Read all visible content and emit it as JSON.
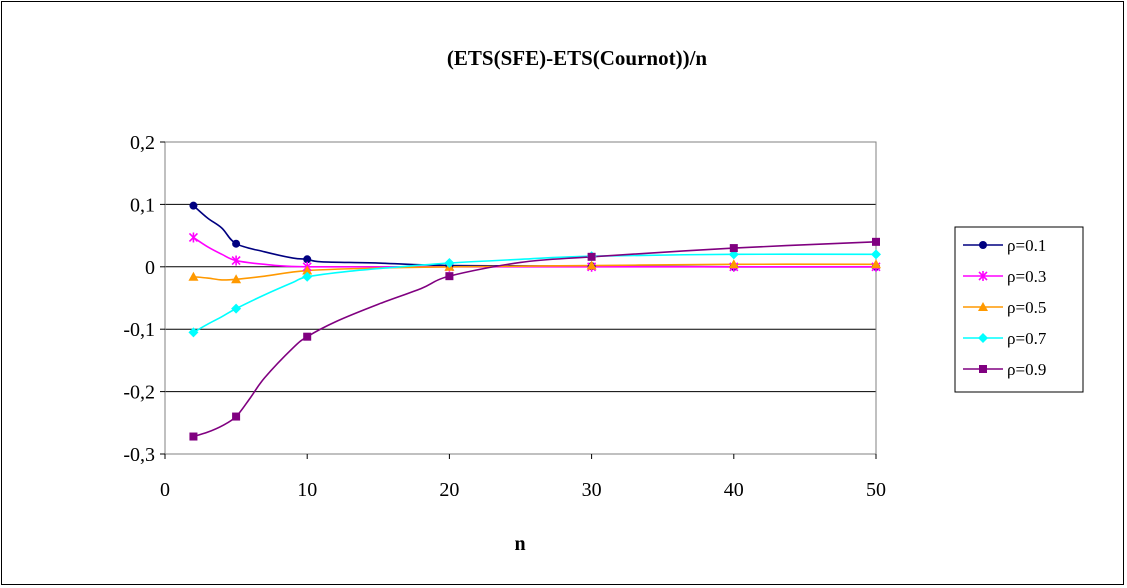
{
  "chart_data": {
    "type": "line",
    "title": "(ETS(SFE)-ETS(Cournot))/n",
    "xlabel": "n",
    "ylabel": "",
    "xlim": [
      0,
      50
    ],
    "ylim": [
      -0.3,
      0.2
    ],
    "xticks": [
      0,
      10,
      20,
      30,
      40,
      50
    ],
    "xtick_labels": [
      "0",
      "10",
      "20",
      "30",
      "40",
      "50"
    ],
    "yticks": [
      -0.3,
      -0.2,
      -0.1,
      0,
      0.1,
      0.2
    ],
    "ytick_labels": [
      "-0,3",
      "-0,2",
      "-0,1",
      "0",
      "0,1",
      "0,2"
    ],
    "grid": "horizontal",
    "legend_position": "right",
    "series": [
      {
        "name": "ρ=0.1",
        "color": "#000080",
        "marker": "circle",
        "curve": [
          [
            2,
            0.098
          ],
          [
            3,
            0.078
          ],
          [
            4,
            0.062
          ],
          [
            5,
            0.037
          ],
          [
            7,
            0.024
          ],
          [
            9,
            0.014
          ],
          [
            10,
            0.012
          ],
          [
            11,
            0.008
          ],
          [
            15,
            0.006
          ],
          [
            20,
            0.002
          ],
          [
            30,
            0.001
          ],
          [
            40,
            0.0
          ],
          [
            50,
            0.0
          ]
        ],
        "markers": [
          [
            2,
            0.098
          ],
          [
            5,
            0.037
          ],
          [
            10,
            0.012
          ],
          [
            20,
            0.002
          ],
          [
            30,
            0.001
          ],
          [
            40,
            0.0
          ],
          [
            50,
            0.0
          ]
        ]
      },
      {
        "name": "ρ=0.3",
        "color": "#ff00ff",
        "marker": "asterisk",
        "curve": [
          [
            2,
            0.047
          ],
          [
            3,
            0.032
          ],
          [
            4,
            0.02
          ],
          [
            5,
            0.01
          ],
          [
            7,
            0.004
          ],
          [
            10,
            0.0
          ],
          [
            20,
            0.0
          ],
          [
            30,
            0.0
          ],
          [
            40,
            0.0
          ],
          [
            50,
            0.0
          ]
        ],
        "markers": [
          [
            2,
            0.047
          ],
          [
            5,
            0.01
          ],
          [
            10,
            0.0
          ],
          [
            20,
            0.0
          ],
          [
            30,
            0.0
          ],
          [
            40,
            0.0
          ],
          [
            50,
            0.0
          ]
        ]
      },
      {
        "name": "ρ=0.5",
        "color": "#ff9900",
        "marker": "triangle",
        "curve": [
          [
            2,
            -0.016
          ],
          [
            3,
            -0.018
          ],
          [
            4,
            -0.021
          ],
          [
            5,
            -0.02
          ],
          [
            7,
            -0.015
          ],
          [
            10,
            -0.006
          ],
          [
            15,
            -0.002
          ],
          [
            20,
            0.0
          ],
          [
            30,
            0.002
          ],
          [
            40,
            0.004
          ],
          [
            50,
            0.004
          ]
        ],
        "markers": [
          [
            2,
            -0.016
          ],
          [
            5,
            -0.02
          ],
          [
            10,
            -0.006
          ],
          [
            20,
            0.0
          ],
          [
            30,
            0.002
          ],
          [
            40,
            0.004
          ],
          [
            50,
            0.004
          ]
        ]
      },
      {
        "name": "ρ=0.7",
        "color": "#00ffff",
        "marker": "diamond",
        "curve": [
          [
            2,
            -0.105
          ],
          [
            3,
            -0.092
          ],
          [
            4,
            -0.08
          ],
          [
            5,
            -0.067
          ],
          [
            7,
            -0.045
          ],
          [
            9,
            -0.025
          ],
          [
            10,
            -0.016
          ],
          [
            13,
            -0.007
          ],
          [
            16,
            -0.001
          ],
          [
            20,
            0.006
          ],
          [
            25,
            0.012
          ],
          [
            30,
            0.017
          ],
          [
            40,
            0.02
          ],
          [
            50,
            0.02
          ]
        ],
        "markers": [
          [
            2,
            -0.105
          ],
          [
            5,
            -0.067
          ],
          [
            10,
            -0.016
          ],
          [
            20,
            0.006
          ],
          [
            30,
            0.017
          ],
          [
            40,
            0.02
          ],
          [
            50,
            0.02
          ]
        ]
      },
      {
        "name": "ρ=0.9",
        "color": "#800080",
        "marker": "square",
        "curve": [
          [
            2,
            -0.272
          ],
          [
            3,
            -0.265
          ],
          [
            4,
            -0.255
          ],
          [
            5,
            -0.24
          ],
          [
            6,
            -0.21
          ],
          [
            7,
            -0.178
          ],
          [
            9,
            -0.13
          ],
          [
            10,
            -0.112
          ],
          [
            12,
            -0.088
          ],
          [
            15,
            -0.06
          ],
          [
            18,
            -0.035
          ],
          [
            20,
            -0.015
          ],
          [
            25,
            0.007
          ],
          [
            30,
            0.016
          ],
          [
            40,
            0.03
          ],
          [
            50,
            0.04
          ]
        ],
        "markers": [
          [
            2,
            -0.272
          ],
          [
            5,
            -0.24
          ],
          [
            10,
            -0.112
          ],
          [
            20,
            -0.015
          ],
          [
            30,
            0.016
          ],
          [
            40,
            0.03
          ],
          [
            50,
            0.04
          ]
        ]
      }
    ]
  }
}
